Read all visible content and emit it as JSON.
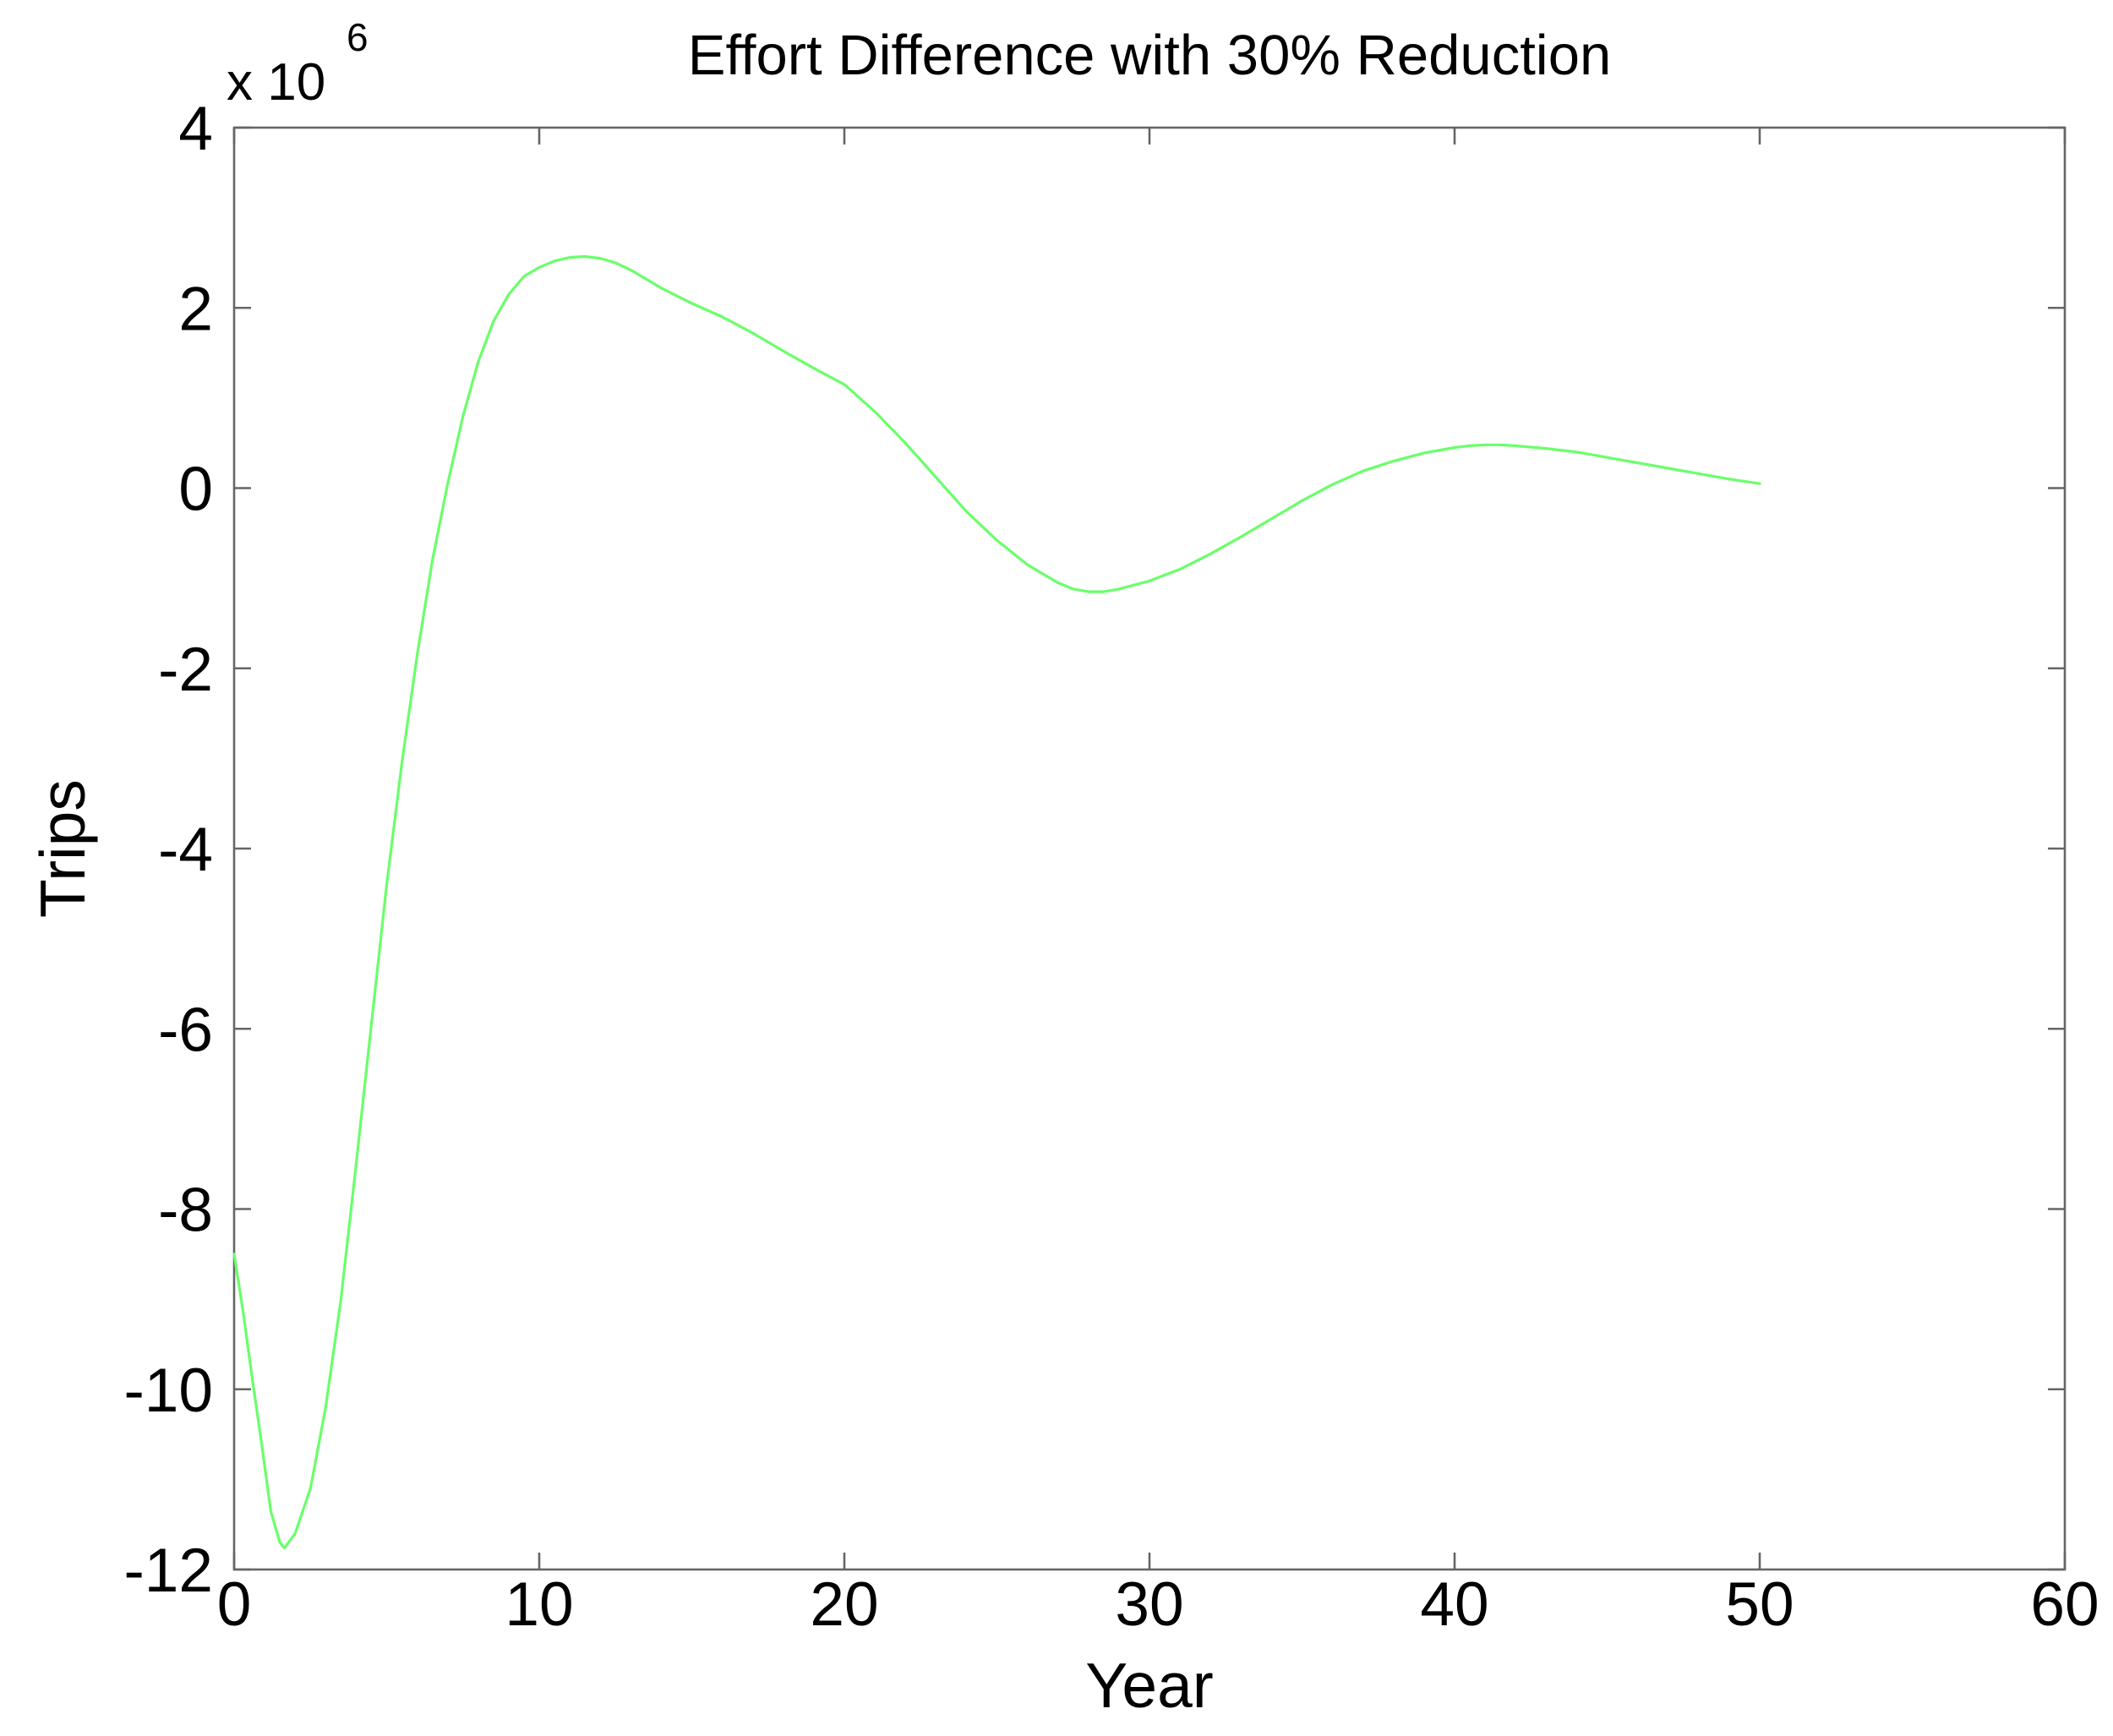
{
  "figure": {
    "title": "Effort Difference with 30% Reduction",
    "xlabel": "Year",
    "ylabel": "Trips",
    "y_scale_base": "x 10",
    "y_scale_exponent": "6"
  },
  "colors": {
    "line_green": "#6aff6a",
    "axis_gray": "#666666",
    "text_black": "#000000",
    "background": "#ffffff"
  },
  "chart_data": {
    "type": "line",
    "title": "Effort Difference with 30% Reduction",
    "xlabel": "Year",
    "ylabel": "Trips",
    "y_multiplier_label": "x 10^6",
    "xlim": [
      0,
      60
    ],
    "ylim": [
      -12,
      4
    ],
    "xticks": [
      0,
      10,
      20,
      30,
      40,
      50,
      60
    ],
    "yticks": [
      4,
      2,
      0,
      -2,
      -4,
      -6,
      -8,
      -10,
      -12
    ],
    "grid": false,
    "legend": false,
    "line_color": "#6aff6a",
    "units": "values in millions of trips (axis scaled by 10^6)",
    "x": [
      0,
      0.3,
      0.6,
      0.9,
      1.2,
      1.5,
      1.65,
      2,
      2.5,
      3,
      3.5,
      4,
      4.5,
      5,
      5.5,
      6,
      6.5,
      7,
      7.5,
      8,
      8.5,
      9,
      9.5,
      10,
      10.5,
      11,
      11.5,
      12,
      12.5,
      13,
      14,
      15,
      16,
      17,
      18,
      19,
      20,
      21,
      22,
      23,
      24,
      25,
      26,
      27,
      27.5,
      28,
      28.5,
      29,
      30,
      31,
      32,
      33,
      34,
      35,
      36,
      37,
      38,
      39,
      40,
      40.5,
      41,
      41.5,
      42,
      43,
      44,
      45,
      46,
      47,
      48,
      49,
      50
    ],
    "y": [
      -8.5,
      -9.15,
      -9.9,
      -10.6,
      -11.35,
      -11.7,
      -11.76,
      -11.6,
      -11.1,
      -10.2,
      -9.0,
      -7.5,
      -5.95,
      -4.4,
      -3.05,
      -1.85,
      -0.8,
      0.05,
      0.8,
      1.4,
      1.85,
      2.15,
      2.35,
      2.45,
      2.52,
      2.56,
      2.57,
      2.55,
      2.5,
      2.42,
      2.22,
      2.05,
      1.9,
      1.72,
      1.52,
      1.33,
      1.15,
      0.85,
      0.5,
      0.12,
      -0.26,
      -0.58,
      -0.85,
      -1.05,
      -1.12,
      -1.15,
      -1.15,
      -1.12,
      -1.03,
      -0.9,
      -0.73,
      -0.54,
      -0.34,
      -0.14,
      0.04,
      0.19,
      0.3,
      0.39,
      0.45,
      0.47,
      0.48,
      0.48,
      0.47,
      0.44,
      0.4,
      0.34,
      0.28,
      0.22,
      0.16,
      0.1,
      0.05
    ]
  }
}
